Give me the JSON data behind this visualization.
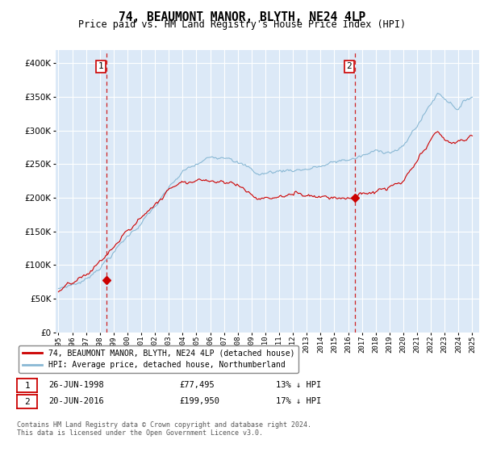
{
  "title": "74, BEAUMONT MANOR, BLYTH, NE24 4LP",
  "subtitle": "Price paid vs. HM Land Registry's House Price Index (HPI)",
  "background_color": "#ffffff",
  "plot_bg_color": "#dce9f7",
  "grid_color": "#ffffff",
  "line1_color": "#cc0000",
  "line2_color": "#89b8d4",
  "dashed_line_color": "#cc0000",
  "purchase1_date": 1998.49,
  "purchase1_price": 77495,
  "purchase2_date": 2016.47,
  "purchase2_price": 199950,
  "ylim": [
    0,
    420000
  ],
  "xlim": [
    1994.8,
    2025.5
  ],
  "legend_line1": "74, BEAUMONT MANOR, BLYTH, NE24 4LP (detached house)",
  "legend_line2": "HPI: Average price, detached house, Northumberland",
  "table_row1_num": "1",
  "table_row1_date": "26-JUN-1998",
  "table_row1_price": "£77,495",
  "table_row1_hpi": "13% ↓ HPI",
  "table_row2_num": "2",
  "table_row2_date": "20-JUN-2016",
  "table_row2_price": "£199,950",
  "table_row2_hpi": "17% ↓ HPI",
  "footnote": "Contains HM Land Registry data © Crown copyright and database right 2024.\nThis data is licensed under the Open Government Licence v3.0."
}
